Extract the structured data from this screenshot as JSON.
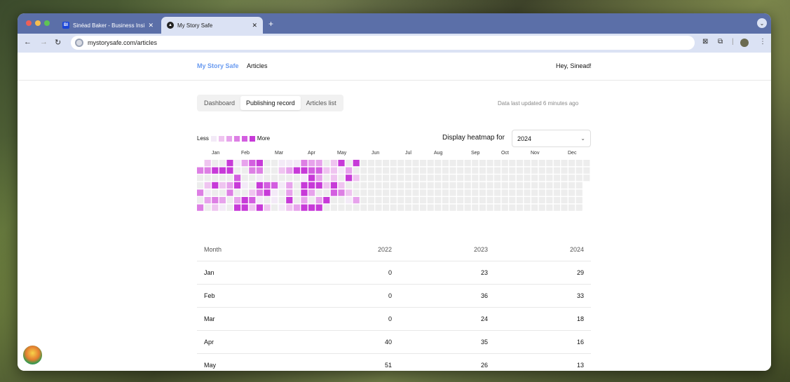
{
  "browser": {
    "tabs": [
      {
        "title": "Sinéad Baker - Business Insid",
        "favicon": "BI",
        "active": false
      },
      {
        "title": "My Story Safe",
        "favicon": "mystorysafe-logo",
        "active": true
      }
    ],
    "url": "mystorysafe.com/articles"
  },
  "app": {
    "brand": "My Story Safe",
    "nav_articles": "Articles",
    "greeting": "Hey, Sinead!"
  },
  "tabs": [
    {
      "label": "Dashboard",
      "selected": false
    },
    {
      "label": "Publishing record",
      "selected": true
    },
    {
      "label": "Articles list",
      "selected": false
    }
  ],
  "updated": "Data last updated 6 minutes ago",
  "legend": {
    "less": "Less",
    "more": "More",
    "colors": [
      "#f3eaf7",
      "#efc4f0",
      "#e7a3ec",
      "#dd7fe4",
      "#d35ee0",
      "#c73ad8"
    ]
  },
  "heatmap": {
    "label": "Display heatmap for",
    "year": "2024",
    "months": [
      "Jan",
      "Feb",
      "Mar",
      "Apr",
      "May",
      "Jun",
      "Jul",
      "Aug",
      "Sep",
      "Oct",
      "Nov",
      "Dec"
    ],
    "empty_color": "#ededed"
  },
  "table": {
    "headers": [
      "Month",
      "2022",
      "2023",
      "2024"
    ],
    "rows": [
      {
        "month": "Jan",
        "y2022": "0",
        "y2023": "23",
        "y2024": "29"
      },
      {
        "month": "Feb",
        "y2022": "0",
        "y2023": "36",
        "y2024": "33"
      },
      {
        "month": "Mar",
        "y2022": "0",
        "y2023": "24",
        "y2024": "18"
      },
      {
        "month": "Apr",
        "y2022": "40",
        "y2023": "35",
        "y2024": "16"
      },
      {
        "month": "May",
        "y2022": "51",
        "y2023": "26",
        "y2024": "13"
      }
    ]
  }
}
